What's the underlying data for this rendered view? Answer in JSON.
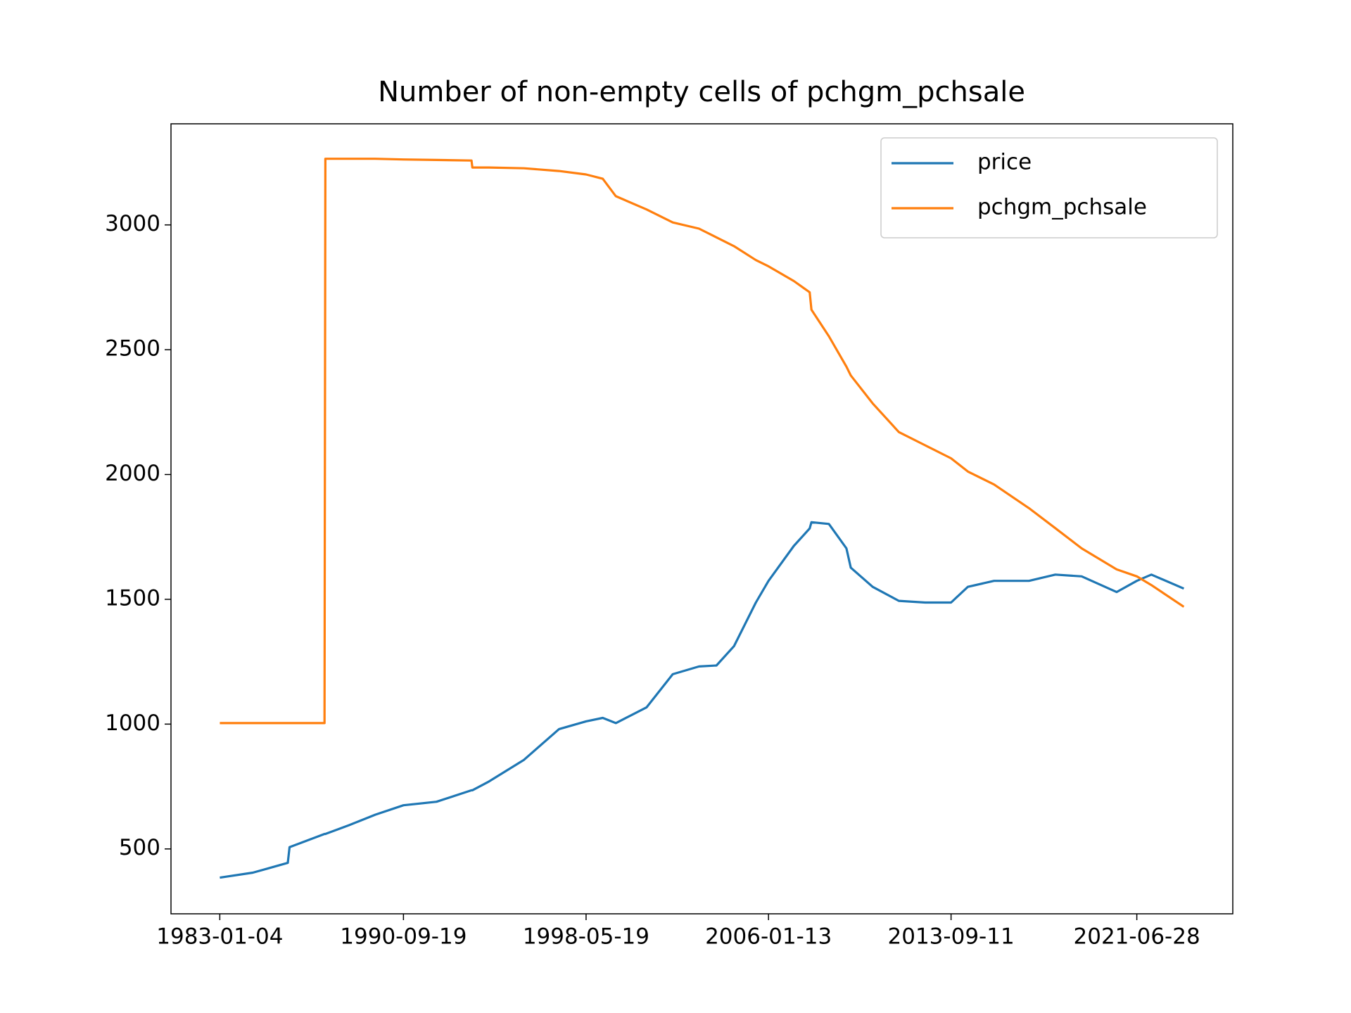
{
  "chart_data": {
    "type": "line",
    "title": "Number of non-empty cells of pchgm_pchsale",
    "x": [
      "1983-01-04",
      "1984-05-24",
      "1985-11-11",
      "1985-12-08",
      "1987-05-28",
      "1987-06-10",
      "1988-06-08",
      "1989-07-14",
      "1990-09-19",
      "1992-02-08",
      "1993-07-28",
      "1993-08-10",
      "1994-04-22",
      "1995-10-11",
      "1997-03-31",
      "1998-05-19",
      "1999-01-29",
      "1999-08-18",
      "2000-11-30",
      "2002-01-06",
      "2003-02-13",
      "2003-11-07",
      "2004-08-02",
      "2005-07-03",
      "2006-01-13",
      "2007-02-06",
      "2007-10-06",
      "2007-11-02",
      "2008-07-27",
      "2009-04-21",
      "2009-06-27",
      "2010-05-28",
      "2011-07-04",
      "2012-08-10",
      "2013-09-11",
      "2014-05-27",
      "2015-07-02",
      "2016-12-19",
      "2018-01-26",
      "2019-03-05",
      "2020-08-22",
      "2021-06-28",
      "2022-02-06",
      "2023-06-18"
    ],
    "series": [
      {
        "name": "price",
        "color": "#1f77b4",
        "values": [
          385,
          405,
          444,
          507,
          560,
          560,
          595,
          637,
          675,
          689,
          735,
          735,
          770,
          857,
          980,
          1011,
          1025,
          1004,
          1067,
          1200,
          1231,
          1235,
          1312,
          1487,
          1574,
          1714,
          1784,
          1809,
          1802,
          1704,
          1627,
          1550,
          1494,
          1487,
          1487,
          1550,
          1574,
          1574,
          1599,
          1592,
          1529,
          1574,
          1599,
          1543
        ]
      },
      {
        "name": "pchgm_pchsale",
        "color": "#ff7f0e",
        "values": [
          1004,
          1004,
          1004,
          1004,
          1004,
          3265,
          3265,
          3265,
          3262,
          3260,
          3258,
          3230,
          3230,
          3227,
          3216,
          3202,
          3185,
          3115,
          3062,
          3010,
          2985,
          2950,
          2915,
          2859,
          2834,
          2775,
          2730,
          2660,
          2554,
          2432,
          2397,
          2285,
          2170,
          2117,
          2065,
          2012,
          1960,
          1865,
          1785,
          1704,
          1620,
          1592,
          1557,
          1470
        ]
      }
    ],
    "xlim": [
      "1980-12-17",
      "2025-07-08"
    ],
    "xticks": [
      "1983-01-04",
      "1990-09-19",
      "1998-05-19",
      "2006-01-13",
      "2013-09-11",
      "2021-06-28"
    ],
    "ylim": [
      240,
      3405
    ],
    "yticks": [
      500,
      1000,
      1500,
      2000,
      2500,
      3000
    ],
    "legend": "upper right"
  }
}
